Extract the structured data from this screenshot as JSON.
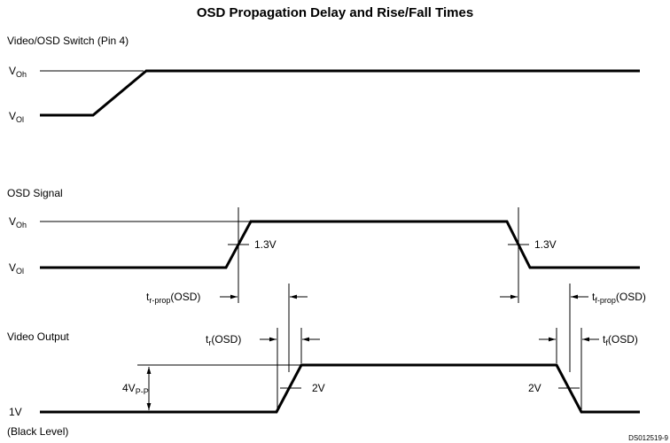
{
  "title": "OSD Propagation Delay and Rise/Fall Times",
  "sections": [
    {
      "label": "Video/OSD Switch (Pin 4)",
      "high": {
        "base": "V",
        "sub": "Oh"
      },
      "low": {
        "base": "V",
        "sub": "Ol"
      }
    },
    {
      "label": "OSD Signal",
      "high": {
        "base": "V",
        "sub": "Oh"
      },
      "low": {
        "base": "V",
        "sub": "Ol"
      },
      "rise_threshold": "1.3V",
      "fall_threshold": "1.3V"
    },
    {
      "label": "Video Output",
      "amplitude": {
        "base": "4V",
        "sub": "P-P"
      },
      "rise_threshold": "2V",
      "fall_threshold": "2V",
      "level": "1V",
      "level_note": "(Black Level)"
    }
  ],
  "timings": {
    "r_prop": {
      "base": "t",
      "sub": "r-prop",
      "suffix": "(OSD)"
    },
    "f_prop": {
      "base": "t",
      "sub": "f-prop",
      "suffix": "(OSD)"
    },
    "r": {
      "base": "t",
      "sub": "r",
      "suffix": "(OSD)"
    },
    "f": {
      "base": "t",
      "sub": "f",
      "suffix": "(OSD)"
    }
  },
  "figure_id": "DS012519-9"
}
